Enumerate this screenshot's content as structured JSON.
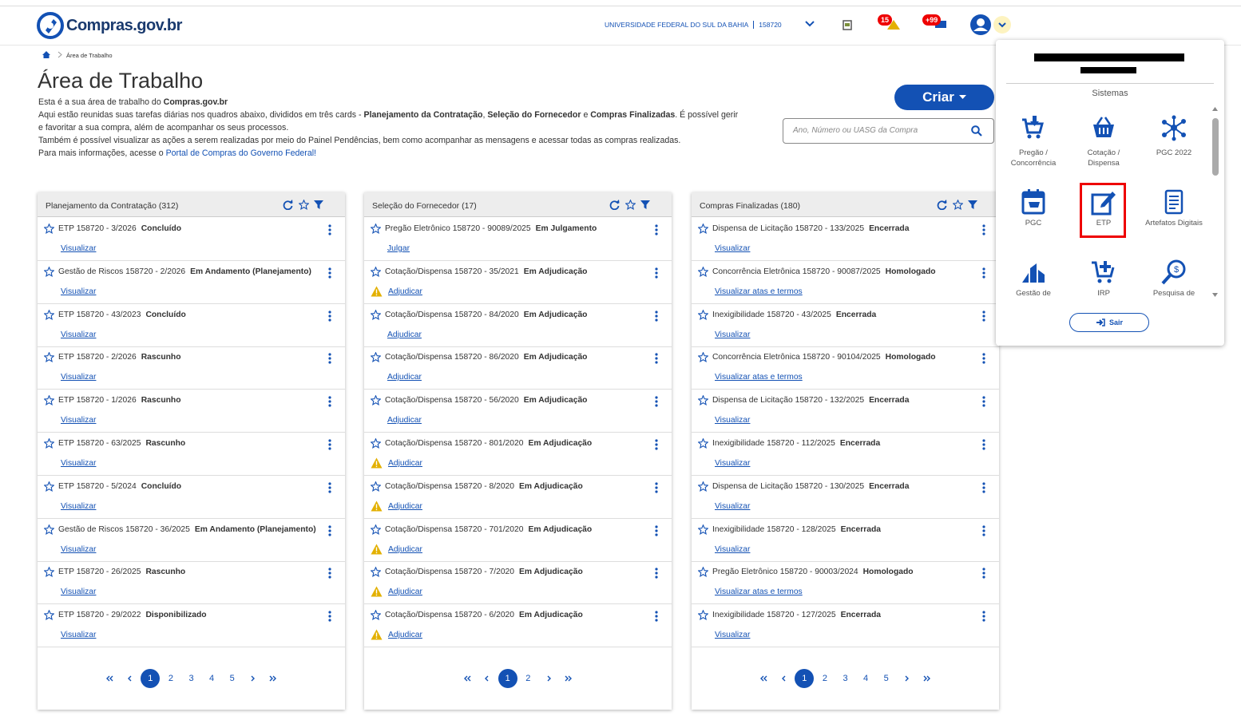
{
  "header": {
    "logo": "Compras.gov.br",
    "organization": "UNIVERSIDADE FEDERAL DO SUL DA BAHIA",
    "uasg": "158720",
    "badges": [
      15,
      "+99"
    ]
  },
  "breadcrumb": [
    "Área de Trabalho"
  ],
  "page": {
    "title": "Área de Trabalho",
    "intro": [
      [
        {
          "text": "Esta é a sua área de trabalho do "
        },
        {
          "text": "Compras.gov.br",
          "bold": true
        }
      ],
      [
        {
          "text": "Aqui estão reunidas suas tarefas diárias nos quadros abaixo, divididos em três cards - "
        },
        {
          "text": "Planejamento da Contratação",
          "bold": true
        },
        {
          "text": ", "
        },
        {
          "text": "Seleção do Fornecedor",
          "bold": true
        },
        {
          "text": " e "
        },
        {
          "text": "Compras Finalizadas",
          "bold": true
        },
        {
          "text": ". É possível gerir e favoritar a sua compra, além de acompanhar os seus processos."
        }
      ],
      [
        {
          "text": "Também é possível visualizar as ações a serem realizadas por meio do Painel Pendências, bem como acompanhar as mensagens e acessar todas as compras realizadas."
        }
      ],
      [
        {
          "text": "Para mais informações, acesse o "
        },
        {
          "text": "Portal de Compras do Governo Federal!",
          "link": true
        }
      ]
    ],
    "create_button": "Criar",
    "search_placeholder": "Ano, Número ou UASG da Compra"
  },
  "cards": [
    {
      "title": "Planejamento da Contratação (312)",
      "pages": [
        1,
        2,
        3,
        4,
        5
      ],
      "items": [
        {
          "title": "ETP 158720 - 3/2026",
          "status": "Concluído",
          "action": "Visualizar",
          "warning": false
        },
        {
          "title": "Gestão de Riscos 158720 - 2/2026",
          "status": "Em Andamento (Planejamento)",
          "action": "Visualizar",
          "warning": false
        },
        {
          "title": "ETP 158720 - 43/2023",
          "status": "Concluído",
          "action": "Visualizar",
          "warning": false
        },
        {
          "title": "ETP 158720 - 2/2026",
          "status": "Rascunho",
          "action": "Visualizar",
          "warning": false
        },
        {
          "title": "ETP 158720 - 1/2026",
          "status": "Rascunho",
          "action": "Visualizar",
          "warning": false
        },
        {
          "title": "ETP 158720 - 63/2025",
          "status": "Rascunho",
          "action": "Visualizar",
          "warning": false
        },
        {
          "title": "ETP 158720 - 5/2024",
          "status": "Concluído",
          "action": "Visualizar",
          "warning": false
        },
        {
          "title": "Gestão de Riscos 158720 - 36/2025",
          "status": "Em Andamento (Planejamento)",
          "action": "Visualizar",
          "warning": false
        },
        {
          "title": "ETP 158720 - 26/2025",
          "status": "Rascunho",
          "action": "Visualizar",
          "warning": false
        },
        {
          "title": "ETP 158720 - 29/2022",
          "status": "Disponibilizado",
          "action": "Visualizar",
          "warning": false
        }
      ]
    },
    {
      "title": "Seleção do Fornecedor (17)",
      "pages": [
        1,
        2
      ],
      "items": [
        {
          "title": "Pregão Eletrônico 158720 - 90089/2025",
          "status": "Em Julgamento",
          "action": "Julgar",
          "warning": false
        },
        {
          "title": "Cotação/Dispensa 158720 - 35/2021",
          "status": "Em Adjudicação",
          "action": "Adjudicar",
          "warning": true
        },
        {
          "title": "Cotação/Dispensa 158720 - 84/2020",
          "status": "Em Adjudicação",
          "action": "Adjudicar",
          "warning": false
        },
        {
          "title": "Cotação/Dispensa 158720 - 86/2020",
          "status": "Em Adjudicação",
          "action": "Adjudicar",
          "warning": false
        },
        {
          "title": "Cotação/Dispensa 158720 - 56/2020",
          "status": "Em Adjudicação",
          "action": "Adjudicar",
          "warning": false
        },
        {
          "title": "Cotação/Dispensa 158720 - 801/2020",
          "status": "Em Adjudicação",
          "action": "Adjudicar",
          "warning": true
        },
        {
          "title": "Cotação/Dispensa 158720 - 8/2020",
          "status": "Em Adjudicação",
          "action": "Adjudicar",
          "warning": true
        },
        {
          "title": "Cotação/Dispensa 158720 - 701/2020",
          "status": "Em Adjudicação",
          "action": "Adjudicar",
          "warning": true
        },
        {
          "title": "Cotação/Dispensa 158720 - 7/2020",
          "status": "Em Adjudicação",
          "action": "Adjudicar",
          "warning": true
        },
        {
          "title": "Cotação/Dispensa 158720 - 6/2020",
          "status": "Em Adjudicação",
          "action": "Adjudicar",
          "warning": true
        }
      ]
    },
    {
      "title": "Compras Finalizadas (180)",
      "pages": [
        1,
        2,
        3,
        4,
        5
      ],
      "items": [
        {
          "title": "Dispensa de Licitação 158720 - 133/2025",
          "status": "Encerrada",
          "action": "Visualizar",
          "warning": false
        },
        {
          "title": "Concorrência Eletrônica 158720 - 90087/2025",
          "status": "Homologado",
          "action": "Visualizar atas e termos",
          "warning": false
        },
        {
          "title": "Inexigibilidade 158720 - 43/2025",
          "status": "Encerrada",
          "action": "Visualizar",
          "warning": false
        },
        {
          "title": "Concorrência Eletrônica 158720 - 90104/2025",
          "status": "Homologado",
          "action": "Visualizar atas e termos",
          "warning": false
        },
        {
          "title": "Dispensa de Licitação 158720 - 132/2025",
          "status": "Encerrada",
          "action": "Visualizar",
          "warning": false
        },
        {
          "title": "Inexigibilidade 158720 - 112/2025",
          "status": "Encerrada",
          "action": "Visualizar",
          "warning": false
        },
        {
          "title": "Dispensa de Licitação 158720 - 130/2025",
          "status": "Encerrada",
          "action": "Visualizar",
          "warning": false
        },
        {
          "title": "Inexigibilidade 158720 - 128/2025",
          "status": "Encerrada",
          "action": "Visualizar",
          "warning": false
        },
        {
          "title": "Pregão Eletrônico 158720 - 90003/2024",
          "status": "Homologado",
          "action": "Visualizar atas e termos",
          "warning": false
        },
        {
          "title": "Inexigibilidade 158720 - 127/2025",
          "status": "Encerrada",
          "action": "Visualizar",
          "warning": false
        }
      ]
    }
  ],
  "dropdown": {
    "heading": "Sistemas",
    "systems": [
      "Pregão / Concorrência",
      "Cotação / Dispensa",
      "PGC 2022",
      "PGC",
      "ETP",
      "Artefatos Digitais",
      "Gestão de",
      "IRP",
      "Pesquisa de"
    ],
    "highlighted": 4,
    "logout": "Sair"
  }
}
